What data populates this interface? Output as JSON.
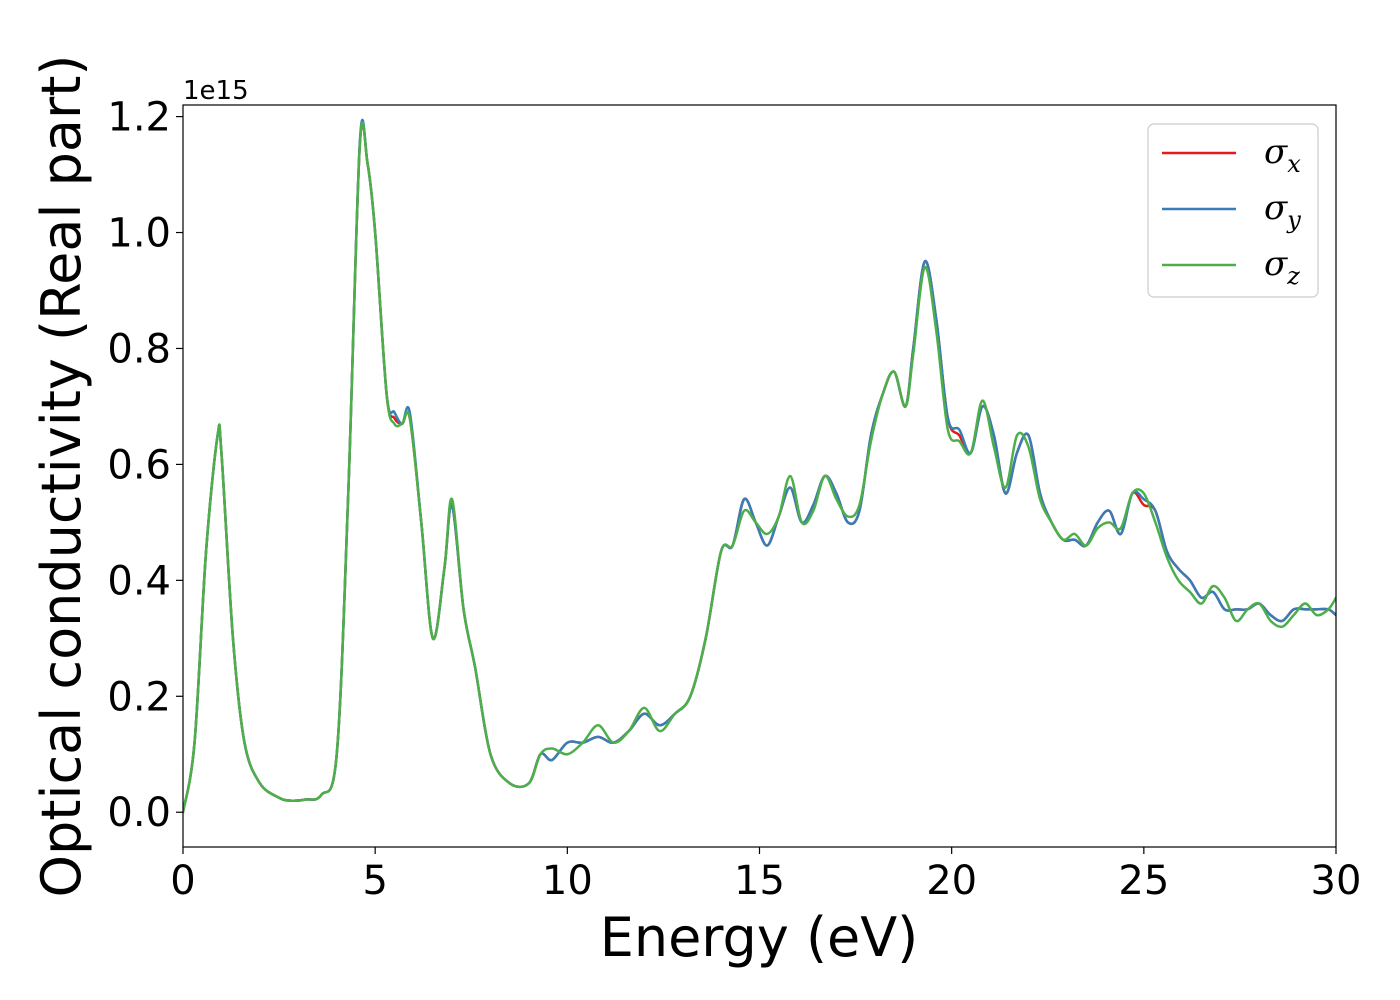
{
  "chart_data": {
    "type": "line",
    "xlabel": "Energy (eV)",
    "ylabel": "Optical conductivity (Real part)",
    "y_offset_label": "1e15",
    "y_scale": 1000000000000000.0,
    "xlim": [
      0,
      30
    ],
    "ylim": [
      -0.06,
      1.22
    ],
    "x_ticks": [
      0,
      5,
      10,
      15,
      20,
      25,
      30
    ],
    "x_tick_labels": [
      "0",
      "5",
      "10",
      "15",
      "20",
      "25",
      "30"
    ],
    "y_ticks": [
      0.0,
      0.2,
      0.4,
      0.6,
      0.8,
      1.0,
      1.2
    ],
    "y_tick_labels": [
      "0.0",
      "0.2",
      "0.4",
      "0.6",
      "0.8",
      "1.0",
      "1.2"
    ],
    "grid": false,
    "legend_position": "upper-right",
    "series": [
      {
        "name": "σx",
        "legend_base": "σ",
        "legend_sub": "x",
        "color": "#e41a1c",
        "x": [
          0,
          0.3,
          0.6,
          0.9,
          1.0,
          1.3,
          1.6,
          2.0,
          2.5,
          2.8,
          3.2,
          3.6,
          4.0,
          4.3,
          4.6,
          4.8,
          5.0,
          5.3,
          5.5,
          5.7,
          5.9,
          6.2,
          6.5,
          6.8,
          7.0,
          7.3,
          7.6,
          8.0,
          8.5,
          9.0,
          9.3,
          9.6,
          10.0,
          10.4,
          10.8,
          11.2,
          11.6,
          12.0,
          12.4,
          12.8,
          13.2,
          13.6,
          14.0,
          14.3,
          14.6,
          14.9,
          15.2,
          15.5,
          15.8,
          16.1,
          16.4,
          16.7,
          17.0,
          17.3,
          17.6,
          17.9,
          18.2,
          18.5,
          18.8,
          19.0,
          19.3,
          19.6,
          19.9,
          20.2,
          20.5,
          20.8,
          21.1,
          21.4,
          21.7,
          22.0,
          22.3,
          22.6,
          22.9,
          23.2,
          23.5,
          23.8,
          24.1,
          24.4,
          24.7,
          25.0,
          25.3,
          25.6,
          25.9,
          26.2,
          26.5,
          26.8,
          27.1,
          27.4,
          27.7,
          28.0,
          28.3,
          28.6,
          28.9,
          29.2,
          29.5,
          29.8,
          30.0
        ],
        "y": [
          0.0,
          0.12,
          0.45,
          0.65,
          0.62,
          0.3,
          0.12,
          0.05,
          0.025,
          0.02,
          0.022,
          0.03,
          0.1,
          0.55,
          1.15,
          1.12,
          1.0,
          0.72,
          0.68,
          0.67,
          0.68,
          0.5,
          0.3,
          0.42,
          0.53,
          0.35,
          0.25,
          0.1,
          0.05,
          0.05,
          0.1,
          0.09,
          0.12,
          0.12,
          0.13,
          0.12,
          0.14,
          0.17,
          0.15,
          0.17,
          0.2,
          0.3,
          0.45,
          0.46,
          0.54,
          0.5,
          0.46,
          0.51,
          0.56,
          0.5,
          0.53,
          0.58,
          0.55,
          0.5,
          0.52,
          0.65,
          0.72,
          0.76,
          0.7,
          0.8,
          0.95,
          0.85,
          0.68,
          0.65,
          0.62,
          0.7,
          0.65,
          0.55,
          0.62,
          0.65,
          0.55,
          0.5,
          0.47,
          0.47,
          0.46,
          0.5,
          0.52,
          0.48,
          0.55,
          0.53,
          0.52,
          0.45,
          0.42,
          0.4,
          0.37,
          0.38,
          0.35,
          0.35,
          0.35,
          0.36,
          0.34,
          0.33,
          0.35,
          0.35,
          0.35,
          0.35,
          0.34
        ]
      },
      {
        "name": "σy",
        "legend_base": "σ",
        "legend_sub": "y",
        "color": "#377eb8",
        "x": [
          0,
          0.3,
          0.6,
          0.9,
          1.0,
          1.3,
          1.6,
          2.0,
          2.5,
          2.8,
          3.2,
          3.6,
          4.0,
          4.3,
          4.6,
          4.8,
          5.0,
          5.3,
          5.5,
          5.7,
          5.9,
          6.2,
          6.5,
          6.8,
          7.0,
          7.3,
          7.6,
          8.0,
          8.5,
          9.0,
          9.3,
          9.6,
          10.0,
          10.4,
          10.8,
          11.2,
          11.6,
          12.0,
          12.4,
          12.8,
          13.2,
          13.6,
          14.0,
          14.3,
          14.6,
          14.9,
          15.2,
          15.5,
          15.8,
          16.1,
          16.4,
          16.7,
          17.0,
          17.3,
          17.6,
          17.9,
          18.2,
          18.5,
          18.8,
          19.0,
          19.3,
          19.6,
          19.9,
          20.2,
          20.5,
          20.8,
          21.1,
          21.4,
          21.7,
          22.0,
          22.3,
          22.6,
          22.9,
          23.2,
          23.5,
          23.8,
          24.1,
          24.4,
          24.7,
          25.0,
          25.3,
          25.6,
          25.9,
          26.2,
          26.5,
          26.8,
          27.1,
          27.4,
          27.7,
          28.0,
          28.3,
          28.6,
          28.9,
          29.2,
          29.5,
          29.8,
          30.0
        ],
        "y": [
          0.0,
          0.12,
          0.45,
          0.65,
          0.62,
          0.3,
          0.12,
          0.05,
          0.025,
          0.02,
          0.022,
          0.03,
          0.1,
          0.55,
          1.155,
          1.12,
          1.0,
          0.72,
          0.69,
          0.67,
          0.69,
          0.5,
          0.3,
          0.42,
          0.53,
          0.35,
          0.25,
          0.1,
          0.05,
          0.05,
          0.1,
          0.09,
          0.12,
          0.12,
          0.13,
          0.12,
          0.14,
          0.17,
          0.15,
          0.17,
          0.2,
          0.3,
          0.45,
          0.46,
          0.54,
          0.5,
          0.46,
          0.51,
          0.56,
          0.5,
          0.53,
          0.58,
          0.55,
          0.5,
          0.52,
          0.65,
          0.72,
          0.76,
          0.7,
          0.8,
          0.95,
          0.85,
          0.68,
          0.66,
          0.62,
          0.7,
          0.65,
          0.55,
          0.62,
          0.65,
          0.55,
          0.5,
          0.47,
          0.47,
          0.46,
          0.5,
          0.52,
          0.48,
          0.55,
          0.54,
          0.52,
          0.45,
          0.42,
          0.4,
          0.37,
          0.38,
          0.35,
          0.35,
          0.35,
          0.36,
          0.34,
          0.33,
          0.35,
          0.35,
          0.35,
          0.35,
          0.34
        ]
      },
      {
        "name": "σz",
        "legend_base": "σ",
        "legend_sub": "z",
        "color": "#4daf4a",
        "x": [
          0,
          0.3,
          0.6,
          0.9,
          1.0,
          1.3,
          1.6,
          2.0,
          2.5,
          2.8,
          3.2,
          3.6,
          4.0,
          4.3,
          4.6,
          4.8,
          5.0,
          5.3,
          5.5,
          5.7,
          5.9,
          6.2,
          6.5,
          6.8,
          7.0,
          7.3,
          7.6,
          8.0,
          8.5,
          9.0,
          9.3,
          9.6,
          10.0,
          10.4,
          10.8,
          11.2,
          11.6,
          12.0,
          12.4,
          12.8,
          13.2,
          13.6,
          14.0,
          14.3,
          14.6,
          14.9,
          15.2,
          15.5,
          15.8,
          16.1,
          16.4,
          16.7,
          17.0,
          17.3,
          17.6,
          17.9,
          18.2,
          18.5,
          18.8,
          19.0,
          19.3,
          19.6,
          19.9,
          20.2,
          20.5,
          20.8,
          21.1,
          21.4,
          21.7,
          22.0,
          22.3,
          22.6,
          22.9,
          23.2,
          23.5,
          23.8,
          24.1,
          24.4,
          24.7,
          25.0,
          25.3,
          25.6,
          25.9,
          26.2,
          26.5,
          26.8,
          27.1,
          27.4,
          27.7,
          28.0,
          28.3,
          28.6,
          28.9,
          29.2,
          29.5,
          29.8,
          30.0
        ],
        "y": [
          0.0,
          0.12,
          0.45,
          0.65,
          0.62,
          0.3,
          0.12,
          0.05,
          0.025,
          0.02,
          0.022,
          0.03,
          0.1,
          0.55,
          1.15,
          1.12,
          1.0,
          0.72,
          0.67,
          0.67,
          0.68,
          0.5,
          0.3,
          0.42,
          0.54,
          0.35,
          0.25,
          0.1,
          0.05,
          0.05,
          0.1,
          0.11,
          0.1,
          0.12,
          0.15,
          0.12,
          0.14,
          0.18,
          0.14,
          0.17,
          0.2,
          0.3,
          0.45,
          0.46,
          0.52,
          0.5,
          0.48,
          0.51,
          0.58,
          0.5,
          0.52,
          0.58,
          0.54,
          0.51,
          0.53,
          0.64,
          0.72,
          0.76,
          0.7,
          0.79,
          0.94,
          0.83,
          0.66,
          0.64,
          0.62,
          0.71,
          0.63,
          0.56,
          0.65,
          0.63,
          0.54,
          0.5,
          0.47,
          0.48,
          0.46,
          0.49,
          0.5,
          0.49,
          0.55,
          0.55,
          0.5,
          0.44,
          0.4,
          0.38,
          0.36,
          0.39,
          0.37,
          0.33,
          0.35,
          0.36,
          0.33,
          0.32,
          0.34,
          0.36,
          0.34,
          0.35,
          0.37
        ]
      }
    ]
  }
}
